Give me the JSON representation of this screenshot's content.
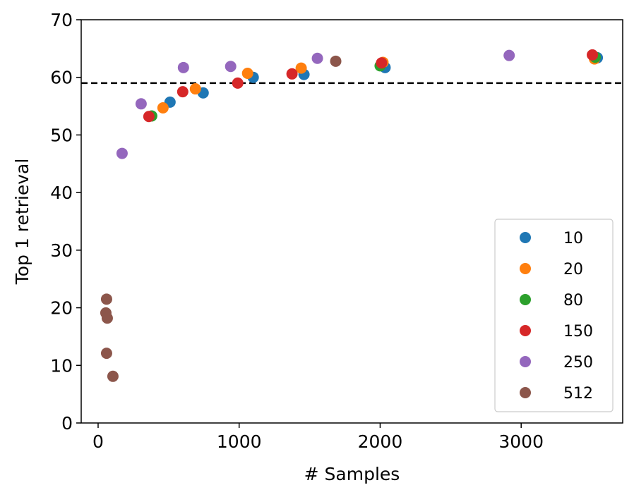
{
  "chart_data": {
    "type": "scatter",
    "xlabel": "# Samples",
    "ylabel": "Top 1 retrieval",
    "xlim": [
      -120,
      3720
    ],
    "ylim": [
      0,
      70
    ],
    "xticks": [
      0,
      1000,
      2000,
      3000
    ],
    "yticks": [
      0,
      10,
      20,
      30,
      40,
      50,
      60,
      70
    ],
    "grid": false,
    "legend": "bottom-right",
    "reference_line": {
      "y": 59,
      "style": "dashed",
      "color": "#000000"
    },
    "series": [
      {
        "name": "10",
        "color": "#1f77b4",
        "points": [
          {
            "x": 510,
            "y": 55.7
          },
          {
            "x": 745,
            "y": 57.3
          },
          {
            "x": 1100,
            "y": 60.0
          },
          {
            "x": 1460,
            "y": 60.5
          },
          {
            "x": 2035,
            "y": 61.7
          },
          {
            "x": 3540,
            "y": 63.4
          }
        ]
      },
      {
        "name": "20",
        "color": "#ff7f0e",
        "points": [
          {
            "x": 460,
            "y": 54.7
          },
          {
            "x": 690,
            "y": 58.0
          },
          {
            "x": 1060,
            "y": 60.7
          },
          {
            "x": 1440,
            "y": 61.6
          },
          {
            "x": 2020,
            "y": 62.6
          },
          {
            "x": 3520,
            "y": 63.2
          }
        ]
      },
      {
        "name": "80",
        "color": "#2ca02c",
        "points": [
          {
            "x": 380,
            "y": 53.3
          },
          {
            "x": 2000,
            "y": 62.0
          },
          {
            "x": 3525,
            "y": 63.5
          }
        ]
      },
      {
        "name": "150",
        "color": "#d62728",
        "points": [
          {
            "x": 360,
            "y": 53.2
          },
          {
            "x": 600,
            "y": 57.5
          },
          {
            "x": 990,
            "y": 59.0
          },
          {
            "x": 1375,
            "y": 60.6
          },
          {
            "x": 2010,
            "y": 62.5
          },
          {
            "x": 3505,
            "y": 63.9
          }
        ]
      },
      {
        "name": "250",
        "color": "#9467bd",
        "points": [
          {
            "x": 170,
            "y": 46.8
          },
          {
            "x": 305,
            "y": 55.4
          },
          {
            "x": 605,
            "y": 61.7
          },
          {
            "x": 940,
            "y": 61.9
          },
          {
            "x": 1555,
            "y": 63.3
          },
          {
            "x": 2915,
            "y": 63.8
          }
        ]
      },
      {
        "name": "512",
        "color": "#8c564b",
        "points": [
          {
            "x": 60,
            "y": 21.5
          },
          {
            "x": 55,
            "y": 19.1
          },
          {
            "x": 65,
            "y": 18.2
          },
          {
            "x": 60,
            "y": 12.1
          },
          {
            "x": 105,
            "y": 8.1
          },
          {
            "x": 1685,
            "y": 62.8
          }
        ]
      }
    ]
  }
}
